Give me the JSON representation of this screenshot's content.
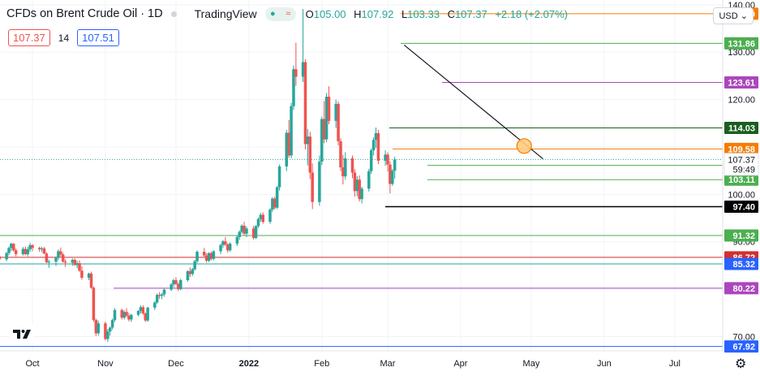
{
  "header": {
    "symbol_title": "CFDs on Brent Crude Oil · 1D",
    "brand": "TradingView",
    "open_label": "O",
    "open": "105.00",
    "high_label": "H",
    "high": "107.92",
    "low_label": "L",
    "low": "103.33",
    "close_label": "C",
    "close": "107.37",
    "change": "+2.18 (+2.07%)"
  },
  "indicator": {
    "left_value": "107.37",
    "period": "14",
    "right_value": "107.51"
  },
  "currency": "USD",
  "colors": {
    "up": "#26a69a",
    "down": "#ef5350",
    "trendline": "#131722"
  },
  "chart_data": {
    "type": "candlestick",
    "y_axis": {
      "min": 67.0,
      "max": 141.0,
      "tick_labels": [
        "140.00",
        "130.00",
        "120.00",
        "110.00",
        "100.00",
        "90.00",
        "80.00",
        "70.00"
      ],
      "tick_values": [
        140,
        130,
        120,
        110,
        100,
        90,
        80,
        70
      ]
    },
    "x_axis": {
      "tick_labels": [
        "Oct",
        "Nov",
        "Dec",
        "2022",
        "Feb",
        "Mar",
        "Apr",
        "May",
        "Jun",
        "Jul"
      ]
    },
    "current_price": {
      "price": "107.37",
      "countdown": "59:49"
    },
    "horizontal_levels": [
      {
        "label": "138.10",
        "value": 138.1,
        "color": "#f57c00"
      },
      {
        "label": "131.86",
        "value": 131.86,
        "color": "#4caf50"
      },
      {
        "label": "123.61",
        "value": 123.61,
        "color": "#ab47bc"
      },
      {
        "label": "114.03",
        "value": 114.03,
        "color": "#1b5e20"
      },
      {
        "label": "109.58",
        "value": 109.58,
        "color": "#f57c00"
      },
      {
        "label": "106.11",
        "value": 106.11,
        "color": "#2962ff",
        "line": "#4caf50"
      },
      {
        "label": "103.11",
        "value": 103.11,
        "color": "#4caf50"
      },
      {
        "label": "97.40",
        "value": 97.4,
        "color": "#000000"
      },
      {
        "label": "91.32",
        "value": 91.32,
        "color": "#4caf50"
      },
      {
        "label": "86.72",
        "value": 86.72,
        "color": "#d32f2f"
      },
      {
        "label": "85.32",
        "value": 85.32,
        "color": "#2962ff",
        "line": "#26a69a"
      },
      {
        "label": "80.22",
        "value": 80.22,
        "color": "#ab47bc"
      },
      {
        "label": "67.92",
        "value": 67.92,
        "color": "#2962ff"
      }
    ],
    "trendline": {
      "from_date": "2022-03-08",
      "from_value": 131.5,
      "to_date": "2022-05-06",
      "to_value": 107.5
    },
    "annotation_circle": {
      "date": "2022-04-28",
      "value": 110.2
    },
    "candles": [
      [
        85.0,
        86.7,
        84.2,
        85.1
      ],
      [
        85.1,
        86.6,
        84.8,
        86.4
      ],
      [
        86.4,
        88.0,
        85.9,
        87.7
      ],
      [
        87.7,
        88.0,
        86.5,
        86.9
      ],
      [
        86.9,
        87.2,
        85.6,
        86.3
      ],
      [
        86.3,
        87.9,
        85.9,
        87.6
      ],
      [
        87.6,
        89.0,
        87.1,
        88.7
      ],
      [
        88.7,
        89.8,
        88.0,
        89.6
      ],
      [
        89.6,
        89.7,
        87.9,
        88.2
      ],
      [
        88.2,
        88.6,
        86.9,
        87.4
      ],
      [
        87.4,
        88.9,
        87.1,
        88.5
      ],
      [
        88.5,
        89.0,
        87.1,
        87.4
      ],
      [
        87.4,
        88.9,
        86.9,
        88.4
      ],
      [
        88.4,
        89.8,
        87.9,
        89.3
      ],
      [
        89.3,
        89.5,
        88.0,
        88.7
      ],
      [
        88.7,
        89.0,
        87.9,
        88.4
      ],
      [
        88.4,
        89.0,
        87.8,
        88.6
      ],
      [
        88.6,
        88.9,
        87.4,
        87.5
      ],
      [
        87.5,
        87.8,
        85.5,
        85.7
      ],
      [
        85.7,
        86.2,
        84.5,
        85.8
      ],
      [
        85.8,
        86.9,
        84.9,
        86.6
      ],
      [
        86.6,
        88.4,
        86.1,
        88.0
      ],
      [
        88.0,
        88.8,
        86.9,
        87.3
      ],
      [
        87.3,
        87.7,
        85.6,
        85.8
      ],
      [
        85.8,
        86.3,
        84.7,
        85.6
      ],
      [
        85.6,
        86.5,
        84.9,
        86.2
      ],
      [
        86.2,
        86.5,
        84.9,
        85.1
      ],
      [
        85.1,
        86.0,
        84.4,
        85.5
      ],
      [
        85.5,
        86.1,
        83.6,
        83.9
      ],
      [
        83.9,
        84.8,
        82.0,
        82.4
      ],
      [
        82.4,
        83.5,
        81.9,
        83.3
      ],
      [
        83.3,
        83.7,
        80.1,
        80.3
      ],
      [
        80.3,
        80.6,
        73.1,
        73.5
      ],
      [
        73.5,
        73.8,
        70.1,
        70.7
      ],
      [
        70.7,
        73.4,
        70.2,
        72.8
      ],
      [
        72.8,
        73.2,
        69.2,
        69.5
      ],
      [
        69.5,
        71.6,
        68.9,
        71.1
      ],
      [
        71.1,
        72.1,
        70.2,
        71.9
      ],
      [
        71.9,
        73.8,
        71.5,
        73.5
      ],
      [
        73.5,
        76.0,
        73.1,
        75.6
      ],
      [
        75.6,
        75.9,
        73.6,
        74.0
      ],
      [
        74.0,
        75.6,
        73.6,
        75.2
      ],
      [
        75.2,
        76.0,
        74.1,
        74.4
      ],
      [
        74.4,
        75.0,
        73.2,
        73.6
      ],
      [
        73.6,
        74.8,
        73.1,
        74.6
      ],
      [
        74.6,
        75.6,
        74.3,
        75.4
      ],
      [
        75.4,
        76.6,
        74.9,
        76.2
      ],
      [
        76.2,
        76.6,
        74.6,
        74.9
      ],
      [
        74.9,
        75.1,
        73.1,
        73.4
      ],
      [
        73.4,
        76.3,
        73.1,
        76.1
      ],
      [
        76.1,
        77.5,
        75.6,
        77.2
      ],
      [
        77.2,
        79.1,
        76.9,
        78.8
      ],
      [
        78.8,
        79.4,
        78.0,
        78.6
      ],
      [
        78.6,
        79.2,
        77.9,
        78.9
      ],
      [
        78.9,
        80.1,
        78.4,
        79.9
      ],
      [
        79.9,
        81.3,
        79.6,
        81.0
      ],
      [
        81.0,
        82.2,
        80.4,
        81.9
      ],
      [
        81.9,
        82.5,
        80.8,
        81.1
      ],
      [
        81.1,
        81.4,
        79.6,
        80.0
      ],
      [
        80.0,
        82.2,
        79.8,
        81.9
      ],
      [
        81.9,
        84.0,
        81.6,
        83.8
      ],
      [
        83.8,
        84.6,
        82.6,
        83.2
      ],
      [
        83.2,
        84.5,
        82.8,
        84.2
      ],
      [
        84.2,
        86.2,
        83.9,
        85.9
      ],
      [
        85.9,
        88.2,
        85.5,
        87.9
      ],
      [
        87.9,
        88.7,
        86.7,
        87.1
      ],
      [
        87.1,
        87.6,
        85.6,
        86.0
      ],
      [
        86.0,
        87.8,
        85.7,
        87.6
      ],
      [
        87.6,
        87.9,
        86.1,
        86.4
      ],
      [
        86.4,
        88.2,
        86.1,
        88.0
      ],
      [
        88.0,
        89.6,
        87.4,
        89.3
      ],
      [
        89.3,
        90.4,
        88.7,
        90.1
      ],
      [
        90.1,
        91.0,
        89.1,
        89.4
      ],
      [
        89.4,
        89.7,
        87.7,
        88.2
      ],
      [
        88.2,
        89.9,
        87.9,
        89.6
      ],
      [
        89.6,
        91.3,
        89.1,
        91.0
      ],
      [
        91.0,
        92.4,
        90.4,
        92.1
      ],
      [
        92.1,
        93.7,
        91.7,
        93.4
      ],
      [
        93.4,
        94.2,
        91.4,
        91.7
      ],
      [
        91.7,
        93.2,
        91.0,
        92.8
      ],
      [
        92.8,
        93.4,
        90.5,
        90.8
      ],
      [
        90.8,
        93.5,
        90.6,
        93.3
      ],
      [
        93.3,
        95.1,
        92.9,
        94.8
      ],
      [
        94.8,
        96.1,
        94.2,
        95.7
      ],
      [
        95.7,
        96.2,
        93.8,
        94.2
      ],
      [
        94.2,
        97.1,
        93.8,
        96.8
      ],
      [
        96.8,
        99.4,
        96.3,
        99.1
      ],
      [
        99.1,
        99.5,
        96.8,
        97.2
      ],
      [
        97.2,
        101.8,
        96.9,
        101.5
      ],
      [
        101.5,
        106.3,
        100.8,
        105.9
      ],
      [
        105.9,
        113.6,
        104.9,
        113.0
      ],
      [
        113.0,
        115.7,
        107.7,
        108.2
      ],
      [
        108.2,
        119.3,
        107.6,
        118.6
      ],
      [
        118.6,
        127.2,
        117.8,
        126.4
      ],
      [
        126.4,
        132.0,
        122.9,
        124.8
      ],
      [
        124.8,
        139.1,
        123.7,
        127.9
      ],
      [
        127.9,
        128.5,
        109.5,
        110.6
      ],
      [
        110.6,
        113.8,
        106.1,
        112.2
      ],
      [
        112.2,
        113.2,
        103.2,
        104.6
      ],
      [
        104.6,
        106.5,
        96.9,
        98.4
      ],
      [
        98.4,
        108.2,
        97.6,
        106.9
      ],
      [
        106.9,
        116.4,
        106.2,
        115.9
      ],
      [
        115.9,
        119.7,
        110.8,
        111.6
      ],
      [
        111.6,
        121.4,
        111.0,
        120.6
      ],
      [
        120.6,
        122.8,
        114.8,
        115.5
      ],
      [
        115.5,
        120.0,
        114.0,
        119.1
      ],
      [
        119.1,
        119.6,
        110.3,
        111.2
      ],
      [
        111.2,
        111.8,
        104.9,
        105.7
      ],
      [
        105.7,
        108.3,
        102.1,
        103.8
      ],
      [
        103.8,
        108.9,
        103.1,
        107.6
      ],
      [
        107.6,
        108.2,
        103.4,
        104.6
      ],
      [
        104.6,
        105.3,
        99.5,
        100.7
      ],
      [
        100.7,
        103.9,
        99.6,
        103.1
      ],
      [
        103.1,
        104.0,
        98.5,
        99.0
      ],
      [
        99.0,
        101.6,
        98.1,
        101.2
      ],
      [
        101.2,
        105.4,
        100.6,
        104.9
      ],
      [
        104.9,
        109.7,
        104.3,
        109.3
      ],
      [
        109.3,
        112.0,
        108.2,
        111.5
      ],
      [
        111.5,
        114.1,
        109.8,
        112.9
      ],
      [
        112.9,
        113.6,
        106.4,
        107.1
      ],
      [
        107.1,
        109.3,
        106.0,
        108.4
      ],
      [
        108.4,
        108.9,
        104.8,
        106.3
      ],
      [
        106.3,
        107.0,
        100.2,
        102.2
      ],
      [
        102.2,
        105.4,
        101.8,
        105.0
      ],
      [
        105.0,
        107.92,
        103.33,
        107.37
      ]
    ]
  }
}
